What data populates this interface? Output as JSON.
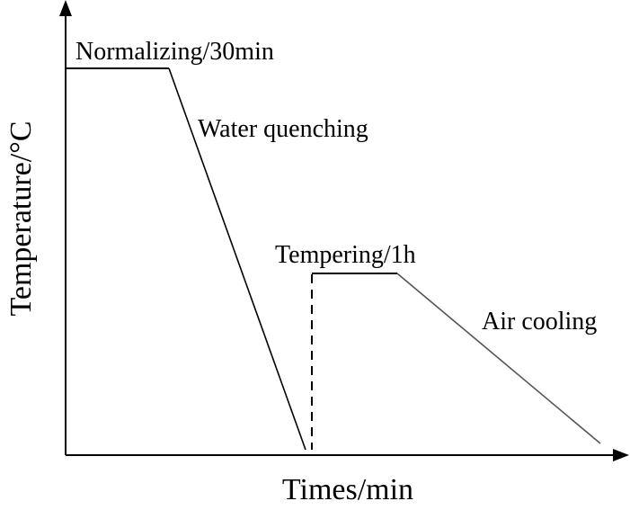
{
  "diagram": {
    "labels": {
      "normalizing": "Normalizing/30min",
      "water_quenching": "Water quenching",
      "tempering": "Tempering/1h",
      "air_cooling": "Air cooling"
    },
    "axes": {
      "x_label": "Times/min",
      "y_label": "Temperature/°C"
    },
    "colors": {
      "axis": "#000000",
      "process_line": "#000000",
      "air_cooling_line": "#555555"
    }
  }
}
